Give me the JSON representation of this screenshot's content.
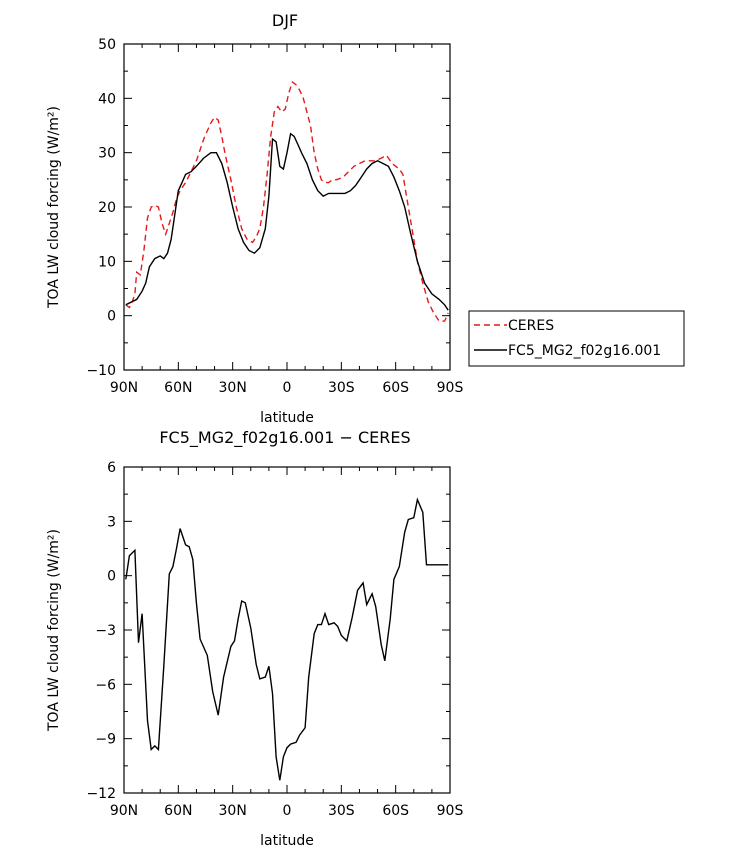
{
  "chart_data": [
    {
      "type": "line",
      "title": "DJF",
      "xlabel": "latitude",
      "ylabel": "TOA LW cloud forcing (W/m²)",
      "xlim": [
        -90,
        90
      ],
      "ylim": [
        -10,
        50
      ],
      "xticks": [
        -90,
        -60,
        -30,
        0,
        30,
        60,
        90
      ],
      "xtick_labels": [
        "90N",
        "60N",
        "30N",
        "0",
        "30S",
        "60S",
        "90S"
      ],
      "yticks": [
        -10,
        0,
        10,
        20,
        30,
        40,
        50
      ],
      "ytick_labels": [
        "−10",
        "0",
        "10",
        "20",
        "30",
        "40",
        "50"
      ],
      "legend": "right",
      "series": [
        {
          "name": "CERES",
          "color": "#e31a1c",
          "dash": "dashed",
          "x": [
            -89,
            -87,
            -86,
            -84,
            -83,
            -81,
            -79,
            -77,
            -75,
            -73,
            -71,
            -69,
            -67,
            -65,
            -63,
            -61,
            -59,
            -56,
            -53,
            -50,
            -48,
            -46,
            -44,
            -42,
            -40,
            -38,
            -36,
            -34,
            -31,
            -28,
            -25,
            -22,
            -19,
            -17,
            -15,
            -13,
            -11,
            -9,
            -7,
            -5,
            -3,
            -1,
            1,
            3,
            5,
            7,
            9,
            11,
            13,
            15,
            17,
            19,
            21,
            23,
            25,
            27,
            29,
            31,
            34,
            37,
            40,
            43,
            46,
            49,
            52,
            55,
            58,
            60,
            62,
            64,
            66,
            69,
            72,
            75,
            78,
            81,
            84,
            87,
            89
          ],
          "y": [
            2,
            1.5,
            2,
            4,
            8,
            7.5,
            12,
            18,
            20,
            20.3,
            20,
            17,
            15,
            17,
            19,
            21.5,
            23,
            24.5,
            26.5,
            28.5,
            30.5,
            32.5,
            34,
            35.5,
            36.5,
            36,
            33,
            29.5,
            25,
            20,
            16,
            14,
            13.5,
            14.5,
            16,
            20,
            26,
            33,
            37.5,
            38.5,
            37.5,
            38,
            41,
            43,
            42.5,
            41.5,
            40,
            37.5,
            35,
            30,
            27,
            25,
            24.5,
            24.5,
            25,
            25,
            25.2,
            25.5,
            26.5,
            27.5,
            28,
            28.5,
            28.5,
            28.5,
            29,
            29.5,
            28,
            27.5,
            27,
            26,
            22,
            16,
            10,
            6,
            2.5,
            0.5,
            -1,
            -1,
            0.5
          ]
        },
        {
          "name": "FC5_MG2_f02g16.001",
          "color": "#000000",
          "dash": "solid",
          "x": [
            -89,
            -86,
            -83,
            -80,
            -78,
            -76,
            -73,
            -70,
            -68,
            -66,
            -64,
            -62,
            -60,
            -58,
            -56,
            -53,
            -50,
            -46,
            -42,
            -39,
            -36,
            -33,
            -30,
            -27,
            -24,
            -21,
            -18,
            -15,
            -12,
            -10,
            -8,
            -6,
            -4,
            -2,
            0,
            2,
            4,
            6,
            8,
            11,
            14,
            17,
            20,
            23,
            26,
            29,
            32,
            35,
            38,
            41,
            44,
            47,
            50,
            53,
            56,
            59,
            62,
            65,
            68,
            72,
            76,
            80,
            84,
            87,
            89
          ],
          "y": [
            2,
            2.5,
            3,
            4.5,
            6,
            9,
            10.5,
            11,
            10.5,
            11.5,
            14,
            18.5,
            23,
            24.5,
            26,
            26.5,
            27.5,
            29,
            30,
            30,
            28,
            24.5,
            20,
            16,
            13.5,
            12,
            11.5,
            12.5,
            16,
            22,
            32.5,
            32,
            27.5,
            27,
            30,
            33.5,
            33,
            31.5,
            30,
            28,
            25,
            23,
            22,
            22.5,
            22.5,
            22.5,
            22.5,
            23,
            24,
            25.5,
            27,
            28,
            28.5,
            28,
            27.5,
            25.5,
            23,
            20,
            15.5,
            10,
            6,
            4,
            3,
            2,
            1
          ]
        }
      ]
    },
    {
      "type": "line",
      "title": "FC5_MG2_f02g16.001 − CERES",
      "xlabel": "latitude",
      "ylabel": "TOA LW cloud forcing (W/m²)",
      "xlim": [
        -90,
        90
      ],
      "ylim": [
        -12,
        6
      ],
      "xticks": [
        -90,
        -60,
        -30,
        0,
        30,
        60,
        90
      ],
      "xtick_labels": [
        "90N",
        "60N",
        "30N",
        "0",
        "30S",
        "60S",
        "90S"
      ],
      "yticks": [
        -12,
        -9,
        -6,
        -3,
        0,
        3,
        6
      ],
      "ytick_labels": [
        "−12",
        "−9",
        "−6",
        "−3",
        "0",
        "3",
        "6"
      ],
      "series": [
        {
          "color": "#000000",
          "dash": "solid",
          "x": [
            -89,
            -87,
            -84,
            -82,
            -80,
            -77,
            -75,
            -73,
            -71,
            -68,
            -65,
            -63,
            -61,
            -59,
            -56,
            -54,
            -52,
            -50,
            -48,
            -44,
            -41,
            -38,
            -35,
            -31,
            -29,
            -27,
            -25,
            -23,
            -20,
            -17,
            -15,
            -12,
            -10,
            -8,
            -6,
            -4,
            -2,
            0,
            2,
            5,
            7,
            10,
            12,
            15,
            17,
            19,
            21,
            23,
            26,
            28,
            30,
            33,
            36,
            39,
            42,
            44,
            47,
            49,
            52,
            54,
            57,
            59,
            62,
            65,
            67,
            70,
            72,
            75,
            77,
            80,
            82,
            84,
            87,
            89
          ],
          "y": [
            -0.2,
            1.1,
            1.4,
            -3.7,
            -2.1,
            -8,
            -9.6,
            -9.4,
            -9.6,
            -5,
            0.1,
            0.5,
            1.5,
            2.6,
            1.7,
            1.6,
            0.9,
            -1.5,
            -3.5,
            -4.4,
            -6.4,
            -7.7,
            -5.6,
            -3.9,
            -3.6,
            -2.4,
            -1.4,
            -1.5,
            -2.9,
            -4.9,
            -5.7,
            -5.6,
            -5,
            -6.5,
            -10,
            -11.3,
            -10,
            -9.5,
            -9.3,
            -9.2,
            -8.8,
            -8.4,
            -5.6,
            -3.2,
            -2.7,
            -2.7,
            -2.1,
            -2.7,
            -2.6,
            -2.8,
            -3.3,
            -3.6,
            -2.3,
            -0.8,
            -0.4,
            -1.6,
            -1,
            -1.7,
            -3.8,
            -4.7,
            -2.4,
            -0.2,
            0.5,
            2.4,
            3.1,
            3.2,
            4.2,
            3.5,
            0.6,
            0.6,
            0.6,
            0.6,
            0.6,
            0.6
          ]
        }
      ]
    }
  ]
}
